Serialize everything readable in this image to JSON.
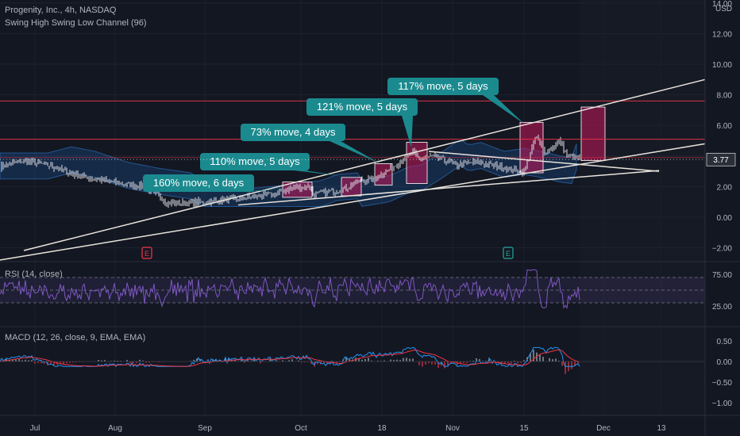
{
  "header": {
    "title": "Progenity, Inc., 4h, NASDAQ",
    "indicator": "Swing High Swing Low Channel (96)",
    "currency": "USD"
  },
  "colors": {
    "background": "#131722",
    "price_line": "#e8e4dc",
    "candle": "#e0dfe5",
    "highlight_box": "#c2185b",
    "callout": "#1b8a8f",
    "horizontal_line": "#f23645",
    "channel_band": "#1e5fa8",
    "rsi": "#7e57c2",
    "macd": "#2196f3",
    "signal": "#f23645",
    "hist_pos": "#b2b5be",
    "hist_neg": "#f23645",
    "axis_text": "#b2b5be",
    "price_label_bg": "#2a2e39"
  },
  "x_axis": {
    "labels": [
      "Jul",
      "Aug",
      "Sep",
      "Oct",
      "18",
      "Nov",
      "15",
      "Dec",
      "13"
    ]
  },
  "chart_data": [
    {
      "type": "line",
      "name": "price",
      "title": "Progenity, Inc., 4h, NASDAQ",
      "y_ticks": [
        -2.0,
        0.0,
        2.0,
        4.0,
        6.0,
        8.0,
        10.0,
        12.0,
        14.0
      ],
      "y_tick_labels": [
        "−2.00",
        "0.00",
        "2.00",
        "4.00",
        "6.00",
        "8.00",
        "10.00",
        "12.00",
        "14.00"
      ],
      "ylim": [
        -2.4,
        14.0
      ],
      "current_price": "3.77",
      "horizontal_levels": [
        7.6,
        5.1,
        3.9
      ],
      "annotations": [
        {
          "label": "160% move, 6 days"
        },
        {
          "label": "110% move, 5 days"
        },
        {
          "label": "73% move, 4 days"
        },
        {
          "label": "121% move, 5 days"
        },
        {
          "label": "117% move, 5 days"
        }
      ],
      "event_markers": [
        "E",
        "E"
      ]
    },
    {
      "type": "line",
      "name": "rsi",
      "title": "RSI (14, close)",
      "y_ticks": [
        25.0,
        75.0
      ],
      "y_tick_labels": [
        "25.00",
        "75.00"
      ],
      "ylim": [
        15,
        85
      ],
      "bands": [
        70,
        30
      ]
    },
    {
      "type": "line",
      "name": "macd",
      "title": "MACD (12, 26, close, 9, EMA, EMA)",
      "y_ticks": [
        -1.0,
        -0.5,
        0.0,
        0.5
      ],
      "y_tick_labels": [
        "−1.00",
        "−0.50",
        "0.00",
        "0.50"
      ],
      "ylim": [
        -1.2,
        0.65
      ]
    }
  ]
}
